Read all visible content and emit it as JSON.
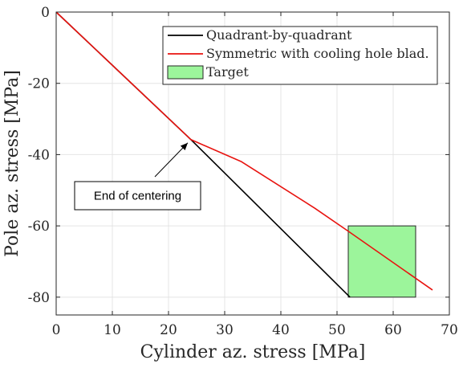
{
  "chart_data": {
    "type": "line",
    "xlabel": "Cylinder az. stress [MPa]",
    "ylabel": "Pole az. stress [MPa]",
    "xlim": [
      0,
      70
    ],
    "ylim": [
      -85,
      0
    ],
    "xticks": [
      0,
      10,
      20,
      30,
      40,
      50,
      60,
      70
    ],
    "yticks": [
      0,
      -20,
      -40,
      -60,
      -80
    ],
    "grid": true,
    "legend_position": "top-right",
    "series": [
      {
        "name": "Quadrant-by-quadrant",
        "color": "#000000",
        "x": [
          0,
          24,
          52.3
        ],
        "y": [
          0,
          -35.8,
          -80
        ]
      },
      {
        "name": "Symmetric with cooling hole blad.",
        "color": "#e8130f",
        "x": [
          0,
          24,
          33,
          46,
          52,
          67
        ],
        "y": [
          0,
          -35.8,
          -42,
          -55,
          -61.5,
          -78
        ]
      }
    ],
    "target": {
      "name": "Target",
      "color": "#9cf59b",
      "x_range": [
        52,
        64
      ],
      "y_range": [
        -80,
        -60
      ]
    },
    "annotation": {
      "text": "End of centering",
      "arrow_to": [
        24,
        -35.8
      ]
    }
  }
}
